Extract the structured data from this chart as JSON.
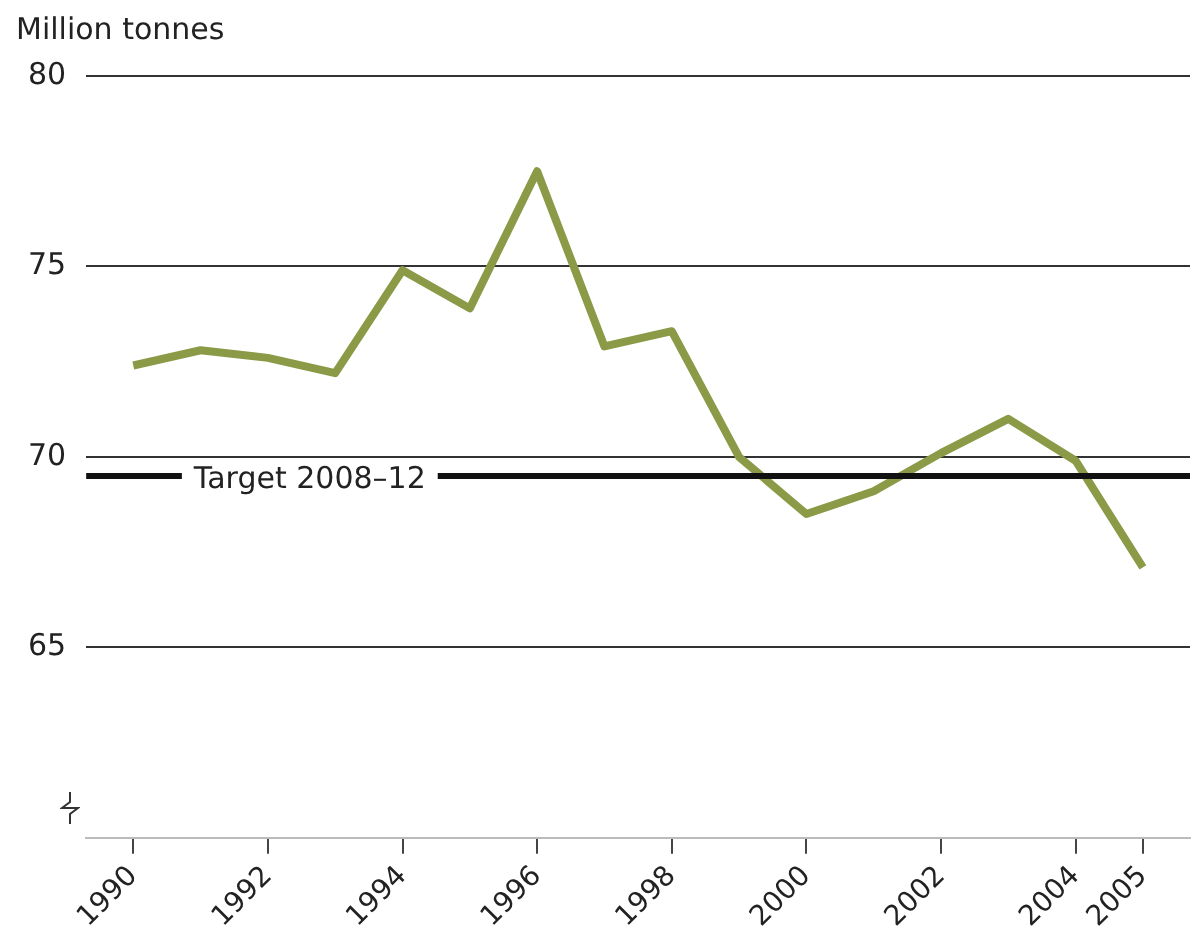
{
  "chart_data": {
    "type": "line",
    "ylabel": "Million tonnes",
    "x": [
      1990,
      1991,
      1992,
      1993,
      1994,
      1995,
      1996,
      1997,
      1998,
      1999,
      2000,
      2001,
      2002,
      2003,
      2004,
      2005
    ],
    "series": [
      {
        "color": "#8a9a46",
        "values": [
          72.4,
          72.8,
          72.6,
          72.2,
          74.9,
          73.9,
          77.5,
          72.9,
          73.3,
          70.0,
          68.5,
          69.1,
          70.1,
          71.0,
          69.9,
          67.1
        ]
      }
    ],
    "xlim": [
      1989.3,
      2005.7
    ],
    "xticks": [
      1990,
      1992,
      1994,
      1996,
      1998,
      2000,
      2002,
      2004,
      2005
    ],
    "ylim": [
      60,
      80
    ],
    "yticks": [
      65,
      70,
      75,
      80
    ],
    "ref_lines": [
      {
        "axis": "y",
        "value": 69.5,
        "label": "Target 2008–12",
        "color": "#111111"
      }
    ],
    "grid": "y",
    "legend": false,
    "marker": "none",
    "line_style": "solid"
  }
}
